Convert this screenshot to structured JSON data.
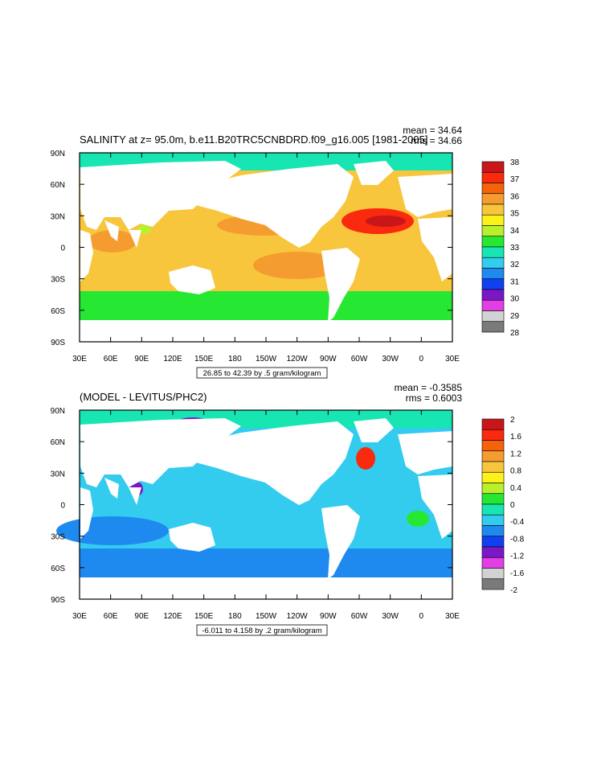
{
  "chart_data": [
    {
      "type": "heatmap",
      "title": "SALINITY at z=  95.0m, b.e11.B20TRC5CNBDRD.f09_g16.005 [1981-2005]",
      "stats": [
        "mean = 34.64",
        "rms = 34.66"
      ],
      "lon_ticks": [
        "30E",
        "60E",
        "90E",
        "120E",
        "150E",
        "180",
        "150W",
        "120W",
        "90W",
        "60W",
        "30W",
        "0",
        "30E"
      ],
      "lat_ticks": [
        "90N",
        "60N",
        "30N",
        "0",
        "30S",
        "60S",
        "90S"
      ],
      "contour_info": "26.85 to 42.39 by .5 gram/kilogram",
      "colorbar_labels": [
        "38",
        "37",
        "36",
        "35",
        "34",
        "33",
        "32",
        "31",
        "30",
        "29",
        "28"
      ],
      "colorbar_colors": [
        "#c8161a",
        "#fa2a0e",
        "#f6620a",
        "#f59c30",
        "#f8c63c",
        "#fcf21a",
        "#b8f02c",
        "#26e832",
        "#17e6b2",
        "#33ccee",
        "#1e8af0",
        "#1040f0",
        "#7a18c8",
        "#e23ee6",
        "#d2d2d2",
        "#7a7a7a"
      ],
      "ocean_color": "#f8c63c",
      "south_band_color": "#26e832",
      "arctic_color": "#17e6b2"
    },
    {
      "type": "heatmap",
      "title": "(MODEL - LEVITUS/PHC2)",
      "stats": [
        "mean = -0.3585",
        "rms = 0.6003"
      ],
      "lon_ticks": [
        "30E",
        "60E",
        "90E",
        "120E",
        "150E",
        "180",
        "150W",
        "120W",
        "90W",
        "60W",
        "30W",
        "0",
        "30E"
      ],
      "lat_ticks": [
        "90N",
        "60N",
        "30N",
        "0",
        "30S",
        "60S",
        "90S"
      ],
      "contour_info": "-6.011 to 4.158 by .2 gram/kilogram",
      "colorbar_labels": [
        "2",
        "1.6",
        "1.2",
        "0.8",
        "0.4",
        "0",
        "-0.4",
        "-0.8",
        "-1.2",
        "-1.6",
        "-2"
      ],
      "colorbar_colors": [
        "#c8161a",
        "#fa2a0e",
        "#f6620a",
        "#f59c30",
        "#f8c63c",
        "#fcf21a",
        "#b8f02c",
        "#26e832",
        "#17e6b2",
        "#33ccee",
        "#1e8af0",
        "#1040f0",
        "#7a18c8",
        "#e23ee6",
        "#d2d2d2",
        "#7a7a7a"
      ],
      "ocean_color": "#33ccee",
      "south_band_color": "#1e8af0",
      "arctic_color": "#17e6b2"
    }
  ]
}
